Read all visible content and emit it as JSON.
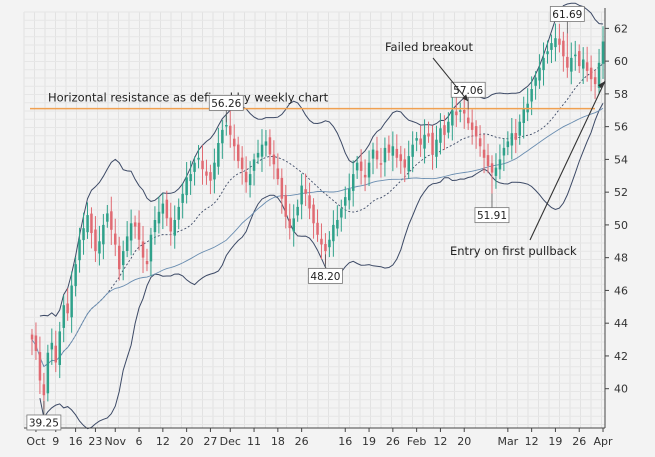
{
  "chart_data": {
    "type": "candlestick",
    "title": "",
    "xlabel": "",
    "ylabel": "",
    "y_axis_side": "right",
    "ylim": [
      37.6,
      63.0
    ],
    "yticks": [
      40,
      42,
      44,
      46,
      48,
      50,
      52,
      54,
      56,
      58,
      60,
      62
    ],
    "grid": true,
    "x_tick_labels": [
      "Oct",
      "9",
      "16",
      "23",
      "Nov",
      "6",
      "12",
      "20",
      "27",
      "Dec",
      "11",
      "18",
      "26",
      "16",
      "19",
      "26",
      "Feb",
      "12",
      "20",
      "Mar",
      "12",
      "19",
      "26",
      "Apr"
    ],
    "x_tick_index": [
      1,
      6,
      11,
      16,
      21,
      27,
      33,
      39,
      45,
      50,
      56,
      62,
      68,
      79,
      85,
      91,
      97,
      103,
      109,
      120,
      126,
      132,
      138,
      144
    ],
    "up_color": "#2fa18a",
    "down_color": "#e06a72",
    "resistance": {
      "value": 57.1,
      "label": "Horizontal resistance as defined by weekly chart",
      "color": "#f0a050"
    },
    "candles_close": [
      43.0,
      42.3,
      40.5,
      39.6,
      42.2,
      42.8,
      41.6,
      43.5,
      45.1,
      44.6,
      46.3,
      47.6,
      49.1,
      49.8,
      50.6,
      49.5,
      48.4,
      49.0,
      50.0,
      50.7,
      49.7,
      48.8,
      47.3,
      48.4,
      49.3,
      50.1,
      49.9,
      49.1,
      48.0,
      47.6,
      49.4,
      50.3,
      50.8,
      51.3,
      50.4,
      49.6,
      50.3,
      51.1,
      51.9,
      52.9,
      53.1,
      53.8,
      54.1,
      53.4,
      53.0,
      52.7,
      53.8,
      55.0,
      55.8,
      56.1,
      55.5,
      54.8,
      53.9,
      53.4,
      52.6,
      53.1,
      54.0,
      54.4,
      54.9,
      55.1,
      54.3,
      53.7,
      52.8,
      51.6,
      50.5,
      49.8,
      50.4,
      51.1,
      52.4,
      51.9,
      51.0,
      50.1,
      49.4,
      48.8,
      48.4,
      49.1,
      50.0,
      50.3,
      51.0,
      51.7,
      52.2,
      53.1,
      53.8,
      53.3,
      52.9,
      53.8,
      54.6,
      54.0,
      53.7,
      54.7,
      54.4,
      54.8,
      54.1,
      53.9,
      53.5,
      54.2,
      54.9,
      55.3,
      54.9,
      55.5,
      55.4,
      54.3,
      55.2,
      55.9,
      55.5,
      56.3,
      57.0,
      56.7,
      57.0,
      56.8,
      56.2,
      55.8,
      55.4,
      54.8,
      54.1,
      53.6,
      53.2,
      53.5,
      54.0,
      54.7,
      55.1,
      55.6,
      55.2,
      56.3,
      57.1,
      57.4,
      58.3,
      59.0,
      59.6,
      60.2,
      60.6,
      61.1,
      61.4,
      61.0,
      60.3,
      59.6,
      60.2,
      60.4,
      59.7,
      60.1,
      59.4,
      58.9,
      58.6,
      59.9,
      61.2
    ],
    "price_labels": [
      {
        "text": "39.25",
        "value": 39.25,
        "index": 3
      },
      {
        "text": "56.26",
        "value": 56.26,
        "index": 49
      },
      {
        "text": "48.20",
        "value": 48.2,
        "index": 74
      },
      {
        "text": "57.06",
        "value": 57.06,
        "index": 110
      },
      {
        "text": "51.91",
        "value": 51.91,
        "index": 116
      },
      {
        "text": "61.69",
        "value": 61.69,
        "index": 135
      }
    ],
    "annotations": [
      {
        "text": "Failed breakout",
        "arrow_to_index": 110,
        "arrow_to_value": 57.3
      },
      {
        "text": "Entry on first pullback",
        "arrow_to_index": 144,
        "arrow_to_value": 58.9
      }
    ]
  }
}
